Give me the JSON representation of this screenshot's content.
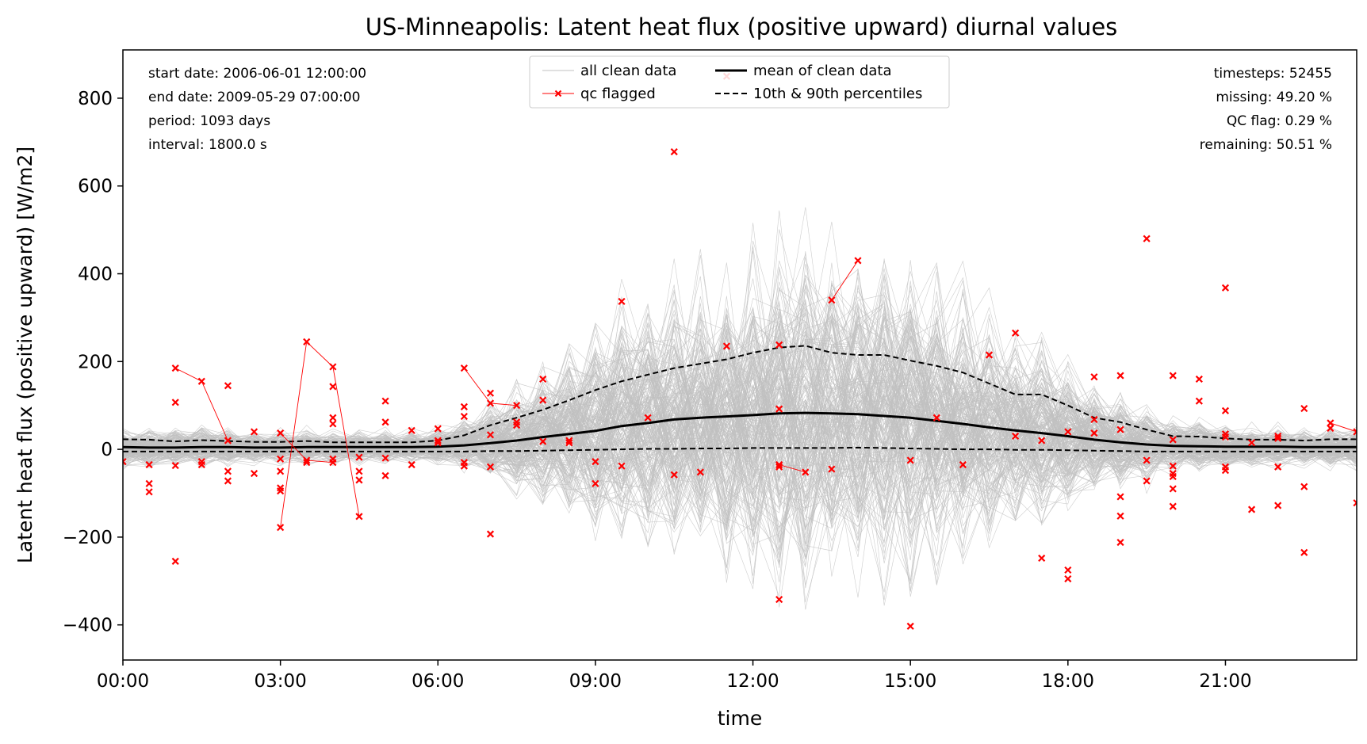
{
  "chart_data": {
    "type": "line",
    "title": "US-Minneapolis: Latent heat flux (positive upward) diurnal values",
    "xlabel": "time",
    "ylabel": "Latent heat flux (positive upward) [W/m2]",
    "xlim": [
      0,
      23.5
    ],
    "ylim": [
      -480,
      910
    ],
    "x_ticks": [
      0,
      3,
      6,
      9,
      12,
      15,
      18,
      21
    ],
    "x_tick_labels": [
      "00:00",
      "03:00",
      "06:00",
      "09:00",
      "12:00",
      "15:00",
      "18:00",
      "21:00"
    ],
    "y_ticks": [
      -400,
      -200,
      0,
      200,
      400,
      600,
      800
    ],
    "y_tick_labels": [
      "−400",
      "−200",
      "0",
      "200",
      "400",
      "600",
      "800"
    ],
    "grid": false,
    "legend": {
      "position": "top-center",
      "entries": [
        {
          "label": "all clean data",
          "color": "#c0c0c0",
          "style": "solid-thin"
        },
        {
          "label": "qc flagged",
          "color": "#ff0000",
          "style": "line-x-marker"
        },
        {
          "label": "mean of clean data",
          "color": "#000000",
          "style": "solid-thick"
        },
        {
          "label": "10th & 90th percentiles",
          "color": "#000000",
          "style": "dashed"
        }
      ]
    },
    "info_left": [
      "start date: 2006-06-01 12:00:00",
      "end date: 2009-05-29 07:00:00",
      "period: 1093 days",
      "interval: 1800.0 s"
    ],
    "info_right": [
      "timesteps: 52455",
      "missing: 49.20 %",
      "QC flag: 0.29 %",
      "remaining: 50.51 %"
    ],
    "colors": {
      "clean": "#c0c0c0",
      "flagged": "#ff0000",
      "mean": "#000000",
      "percentile": "#000000"
    },
    "series": [
      {
        "name": "mean of clean data",
        "x": [
          0,
          0.5,
          1,
          1.5,
          2,
          2.5,
          3,
          3.5,
          4,
          4.5,
          5,
          5.5,
          6,
          6.5,
          7,
          7.5,
          8,
          8.5,
          9,
          9.5,
          10,
          10.5,
          11,
          11.5,
          12,
          12.5,
          13,
          13.5,
          14,
          14.5,
          15,
          15.5,
          16,
          16.5,
          17,
          17.5,
          18,
          18.5,
          19,
          19.5,
          20,
          20.5,
          21,
          21.5,
          22,
          22.5,
          23,
          23.5
        ],
        "y": [
          5,
          4,
          4,
          5,
          5,
          4,
          4,
          5,
          5,
          5,
          5,
          5,
          6,
          9,
          14,
          20,
          28,
          35,
          42,
          53,
          60,
          68,
          72,
          75,
          78,
          82,
          83,
          82,
          80,
          76,
          72,
          65,
          58,
          50,
          43,
          37,
          30,
          22,
          16,
          11,
          8,
          7,
          6,
          6,
          6,
          5,
          5,
          5
        ]
      },
      {
        "name": "90th percentile",
        "x": [
          0,
          0.5,
          1,
          1.5,
          2,
          2.5,
          3,
          3.5,
          4,
          4.5,
          5,
          5.5,
          6,
          6.5,
          7,
          7.5,
          8,
          8.5,
          9,
          9.5,
          10,
          10.5,
          11,
          11.5,
          12,
          12.5,
          13,
          13.5,
          14,
          14.5,
          15,
          15.5,
          16,
          16.5,
          17,
          17.5,
          18,
          18.5,
          19,
          19.5,
          20,
          20.5,
          21,
          21.5,
          22,
          22.5,
          23,
          23.5
        ],
        "y": [
          23,
          22,
          18,
          21,
          19,
          17,
          17,
          19,
          16,
          16,
          16,
          16,
          20,
          32,
          55,
          72,
          90,
          112,
          135,
          155,
          170,
          185,
          195,
          205,
          220,
          232,
          236,
          220,
          215,
          215,
          202,
          190,
          175,
          150,
          125,
          125,
          100,
          72,
          62,
          45,
          30,
          29,
          25,
          22,
          22,
          20,
          23,
          23
        ]
      },
      {
        "name": "10th percentile",
        "x": [
          0,
          0.5,
          1,
          1.5,
          2,
          2.5,
          3,
          3.5,
          4,
          4.5,
          5,
          5.5,
          6,
          6.5,
          7,
          7.5,
          8,
          8.5,
          9,
          9.5,
          10,
          10.5,
          11,
          11.5,
          12,
          12.5,
          13,
          13.5,
          14,
          14.5,
          15,
          15.5,
          16,
          16.5,
          17,
          17.5,
          18,
          18.5,
          19,
          19.5,
          20,
          20.5,
          21,
          21.5,
          22,
          22.5,
          23,
          23.5
        ],
        "y": [
          -5,
          -5,
          -5,
          -5,
          -5,
          -5,
          -5,
          -5,
          -5,
          -5,
          -5,
          -5,
          -5,
          -5,
          -4,
          -4,
          -3,
          -2,
          -1,
          0,
          1,
          1,
          2,
          2,
          3,
          3,
          3,
          3,
          4,
          3,
          2,
          1,
          0,
          0,
          -1,
          -1,
          -2,
          -3,
          -4,
          -5,
          -5,
          -5,
          -5,
          -5,
          -5,
          -5,
          -5,
          -5
        ]
      }
    ],
    "qc_flagged": [
      [
        0,
        -28
      ],
      [
        0.5,
        -35
      ],
      [
        0.5,
        -78
      ],
      [
        0.5,
        -97
      ],
      [
        1,
        185
      ],
      [
        1,
        107
      ],
      [
        1,
        -37
      ],
      [
        1,
        -255
      ],
      [
        1.5,
        155
      ],
      [
        1.5,
        -28
      ],
      [
        1.5,
        -35
      ],
      [
        2,
        145
      ],
      [
        2,
        20
      ],
      [
        2,
        -50
      ],
      [
        2,
        -72
      ],
      [
        2.5,
        40
      ],
      [
        2.5,
        -55
      ],
      [
        3,
        37
      ],
      [
        3,
        -22
      ],
      [
        3,
        -50
      ],
      [
        3,
        -88
      ],
      [
        3,
        -95
      ],
      [
        3,
        -178
      ],
      [
        3.5,
        245
      ],
      [
        3.5,
        -25
      ],
      [
        3.5,
        -30
      ],
      [
        4,
        188
      ],
      [
        4,
        143
      ],
      [
        4,
        72
      ],
      [
        4,
        58
      ],
      [
        4,
        -22
      ],
      [
        4,
        -30
      ],
      [
        4.5,
        -18
      ],
      [
        4.5,
        -50
      ],
      [
        4.5,
        -70
      ],
      [
        4.5,
        -153
      ],
      [
        5,
        110
      ],
      [
        5,
        62
      ],
      [
        5,
        -20
      ],
      [
        5,
        -60
      ],
      [
        5.5,
        43
      ],
      [
        5.5,
        -35
      ],
      [
        6,
        47
      ],
      [
        6,
        20
      ],
      [
        6,
        15
      ],
      [
        6.5,
        185
      ],
      [
        6.5,
        97
      ],
      [
        6.5,
        75
      ],
      [
        6.5,
        -30
      ],
      [
        6.5,
        -38
      ],
      [
        7,
        128
      ],
      [
        7,
        105
      ],
      [
        7,
        33
      ],
      [
        7,
        -40
      ],
      [
        7,
        -193
      ],
      [
        7.5,
        100
      ],
      [
        7.5,
        62
      ],
      [
        7.5,
        55
      ],
      [
        8,
        160
      ],
      [
        8,
        112
      ],
      [
        8,
        18
      ],
      [
        8.5,
        20
      ],
      [
        8.5,
        15
      ],
      [
        9,
        -28
      ],
      [
        9,
        -78
      ],
      [
        9.5,
        337
      ],
      [
        9.5,
        -38
      ],
      [
        10,
        72
      ],
      [
        10.5,
        678
      ],
      [
        10.5,
        -58
      ],
      [
        11,
        -52
      ],
      [
        11.5,
        850
      ],
      [
        11.5,
        235
      ],
      [
        12.5,
        238
      ],
      [
        12.5,
        92
      ],
      [
        12.5,
        -35
      ],
      [
        12.5,
        -40
      ],
      [
        12.5,
        -342
      ],
      [
        13,
        -52
      ],
      [
        13.5,
        340
      ],
      [
        13.5,
        -45
      ],
      [
        14,
        430
      ],
      [
        15,
        -25
      ],
      [
        15,
        -403
      ],
      [
        15.5,
        72
      ],
      [
        16,
        -35
      ],
      [
        16.5,
        215
      ],
      [
        17,
        265
      ],
      [
        17,
        30
      ],
      [
        17.5,
        20
      ],
      [
        17.5,
        -248
      ],
      [
        18,
        40
      ],
      [
        18,
        -275
      ],
      [
        18,
        -295
      ],
      [
        18.5,
        165
      ],
      [
        18.5,
        68
      ],
      [
        18.5,
        37
      ],
      [
        19,
        168
      ],
      [
        19,
        45
      ],
      [
        19,
        -108
      ],
      [
        19,
        -152
      ],
      [
        19,
        -212
      ],
      [
        19.5,
        480
      ],
      [
        19.5,
        -25
      ],
      [
        19.5,
        -72
      ],
      [
        20,
        168
      ],
      [
        20,
        22
      ],
      [
        20,
        -38
      ],
      [
        20,
        -55
      ],
      [
        20,
        -62
      ],
      [
        20,
        -90
      ],
      [
        20,
        -130
      ],
      [
        20.5,
        160
      ],
      [
        20.5,
        110
      ],
      [
        21,
        368
      ],
      [
        21,
        88
      ],
      [
        21,
        35
      ],
      [
        21,
        28
      ],
      [
        21,
        -40
      ],
      [
        21,
        -48
      ],
      [
        21.5,
        15
      ],
      [
        21.5,
        -137
      ],
      [
        22,
        30
      ],
      [
        22,
        25
      ],
      [
        22,
        -40
      ],
      [
        22,
        -128
      ],
      [
        22.5,
        93
      ],
      [
        22.5,
        -85
      ],
      [
        22.5,
        -235
      ],
      [
        23,
        60
      ],
      [
        23,
        48
      ],
      [
        23.5,
        40
      ],
      [
        23.5,
        -122
      ]
    ],
    "qc_flagged_connected": [
      [
        [
          1,
          185
        ],
        [
          1.5,
          155
        ],
        [
          2,
          20
        ]
      ],
      [
        [
          3,
          -178
        ],
        [
          3.5,
          245
        ],
        [
          4,
          188
        ],
        [
          4.5,
          -153
        ]
      ],
      [
        [
          3,
          37
        ],
        [
          3.5,
          -25
        ],
        [
          4,
          -30
        ]
      ],
      [
        [
          6.5,
          185
        ],
        [
          7,
          105
        ],
        [
          7.5,
          100
        ]
      ],
      [
        [
          12.5,
          -35
        ],
        [
          13,
          -52
        ]
      ],
      [
        [
          13.5,
          340
        ],
        [
          14,
          430
        ]
      ],
      [
        [
          23,
          60
        ],
        [
          23.5,
          40
        ]
      ]
    ]
  }
}
